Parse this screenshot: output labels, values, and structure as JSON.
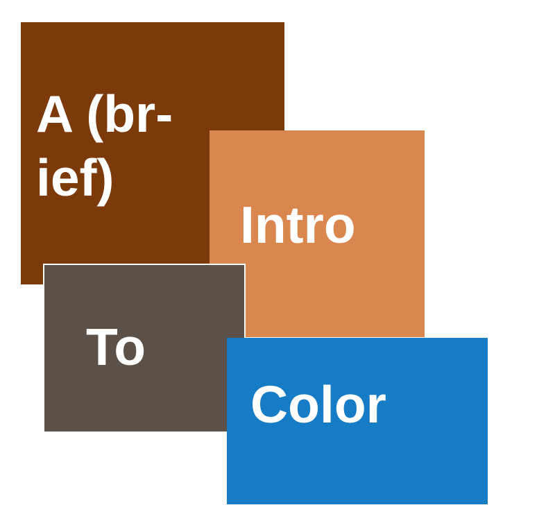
{
  "blocks": [
    {
      "lines": [
        "A (br-",
        "ief)"
      ],
      "color": "#7c3a0a"
    },
    {
      "lines": [
        "Intro"
      ],
      "color": "#d9874f"
    },
    {
      "lines": [
        "To"
      ],
      "color": "#5c5149"
    },
    {
      "lines": [
        "Color"
      ],
      "color": "#177cc6"
    }
  ]
}
